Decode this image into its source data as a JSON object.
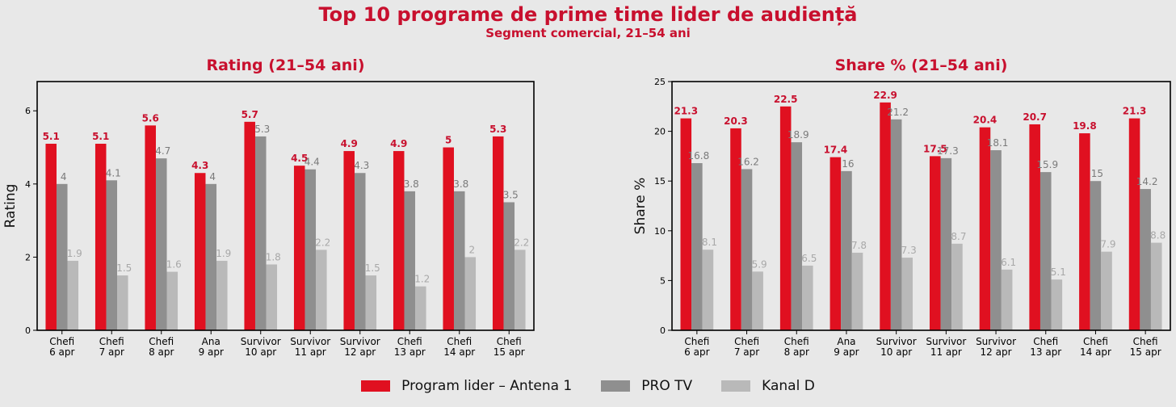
{
  "title": "Top 10 programe de prime time lider de audiență",
  "subtitle": "Segment comercial, 21–54 ani",
  "colors": {
    "accent": "#c8102e",
    "antena": "#e01020",
    "protv": "#8f8f8f",
    "kanald": "#b9b9b9",
    "antena_label": "#c8102e",
    "protv_label": "#7a7a7a",
    "kanald_label": "#a8a8a8"
  },
  "legend": [
    {
      "label": "Program lider – Antena 1",
      "color_key": "antena"
    },
    {
      "label": "PRO TV",
      "color_key": "protv"
    },
    {
      "label": "Kanal D",
      "color_key": "kanald"
    }
  ],
  "chart_data": [
    {
      "type": "bar",
      "title": "Rating (21–54 ani)",
      "xlabel": "",
      "ylabel": "Rating",
      "ylim": [
        0,
        6.8
      ],
      "yticks": [
        0,
        2,
        4,
        6
      ],
      "grid": false,
      "categories": [
        [
          "Chefi",
          "6 apr"
        ],
        [
          "Chefi",
          "7 apr"
        ],
        [
          "Chefi",
          "8 apr"
        ],
        [
          "Ana",
          "9 apr"
        ],
        [
          "Survivor",
          "10 apr"
        ],
        [
          "Survivor",
          "11 apr"
        ],
        [
          "Survivor",
          "12 apr"
        ],
        [
          "Chefi",
          "13 apr"
        ],
        [
          "Chefi",
          "14 apr"
        ],
        [
          "Chefi",
          "15 apr"
        ]
      ],
      "series": [
        {
          "name": "Program lider – Antena 1",
          "color_key": "antena",
          "values": [
            5.1,
            5.1,
            5.6,
            4.3,
            5.7,
            4.5,
            4.9,
            4.9,
            5,
            5.3
          ]
        },
        {
          "name": "PRO TV",
          "color_key": "protv",
          "values": [
            4,
            4.1,
            4.7,
            4,
            5.3,
            4.4,
            4.3,
            3.8,
            3.8,
            3.5
          ]
        },
        {
          "name": "Kanal D",
          "color_key": "kanald",
          "values": [
            1.9,
            1.5,
            1.6,
            1.9,
            1.8,
            2.2,
            1.5,
            1.2,
            2,
            2.2
          ]
        }
      ]
    },
    {
      "type": "bar",
      "title": "Share % (21–54 ani)",
      "xlabel": "",
      "ylabel": "Share %",
      "ylim": [
        0,
        25
      ],
      "yticks": [
        0,
        5,
        10,
        15,
        20,
        25
      ],
      "grid": false,
      "categories": [
        [
          "Chefi",
          "6 apr"
        ],
        [
          "Chefi",
          "7 apr"
        ],
        [
          "Chefi",
          "8 apr"
        ],
        [
          "Ana",
          "9 apr"
        ],
        [
          "Survivor",
          "10 apr"
        ],
        [
          "Survivor",
          "11 apr"
        ],
        [
          "Survivor",
          "12 apr"
        ],
        [
          "Chefi",
          "13 apr"
        ],
        [
          "Chefi",
          "14 apr"
        ],
        [
          "Chefi",
          "15 apr"
        ]
      ],
      "series": [
        {
          "name": "Program lider – Antena 1",
          "color_key": "antena",
          "values": [
            21.3,
            20.3,
            22.5,
            17.4,
            22.9,
            17.5,
            20.4,
            20.7,
            19.8,
            21.3
          ]
        },
        {
          "name": "PRO TV",
          "color_key": "protv",
          "values": [
            16.8,
            16.2,
            18.9,
            16,
            21.2,
            17.3,
            18.1,
            15.9,
            15,
            14.2
          ]
        },
        {
          "name": "Kanal D",
          "color_key": "kanald",
          "values": [
            8.1,
            5.9,
            6.5,
            7.8,
            7.3,
            8.7,
            6.1,
            5.1,
            7.9,
            8.8
          ]
        }
      ]
    }
  ]
}
